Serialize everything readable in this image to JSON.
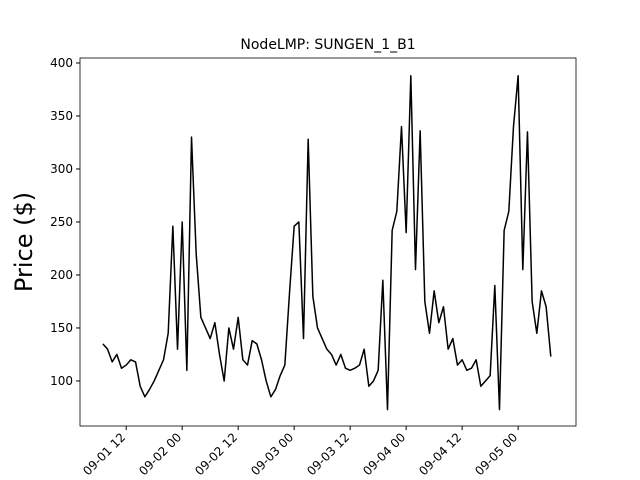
{
  "chart_data": {
    "type": "line",
    "title": "NodeLMP: SUNGEN_1_B1",
    "y_label": "Price ($)",
    "x": [
      7,
      8,
      9,
      10,
      11,
      12,
      13,
      14,
      15,
      16,
      17,
      18,
      19,
      20,
      21,
      22,
      23,
      24,
      25,
      26,
      27,
      28,
      29,
      30,
      31,
      32,
      33,
      34,
      35,
      36,
      37,
      38,
      39,
      40,
      41,
      42,
      43,
      44,
      45,
      46,
      47,
      48,
      49,
      50,
      51,
      52,
      53,
      54,
      55,
      56,
      57,
      58,
      59,
      60,
      61,
      62,
      63,
      64,
      65,
      66,
      67,
      68,
      69,
      70,
      71,
      72,
      73,
      74,
      75,
      76,
      77,
      78,
      79,
      80,
      81,
      82,
      83,
      84,
      85,
      86,
      87,
      88,
      89,
      90,
      91,
      92,
      93,
      94,
      95,
      96,
      97,
      98,
      99,
      100,
      101,
      102,
      103
    ],
    "values": [
      135,
      130,
      118,
      125,
      112,
      115,
      120,
      118,
      95,
      85,
      92,
      100,
      110,
      120,
      145,
      246,
      130,
      250,
      110,
      330,
      220,
      160,
      150,
      140,
      155,
      125,
      100,
      150,
      130,
      160,
      120,
      115,
      138,
      135,
      120,
      100,
      85,
      92,
      105,
      115,
      183,
      246,
      250,
      140,
      328,
      180,
      150,
      140,
      130,
      125,
      115,
      125,
      112,
      110,
      112,
      115,
      130,
      95,
      100,
      110,
      195,
      73,
      242,
      260,
      340,
      240,
      388,
      205,
      336,
      175,
      145,
      185,
      155,
      170,
      130,
      140,
      115,
      120,
      110,
      112,
      120,
      95,
      100,
      105,
      190,
      73,
      242,
      260,
      340,
      388,
      205,
      335,
      175,
      145,
      185,
      170,
      123
    ],
    "color": "#000000",
    "xlim": [
      2.1,
      108.4
    ],
    "xticks": [
      {
        "value": 12,
        "label": "09-01 12"
      },
      {
        "value": 24,
        "label": "09-02 00"
      },
      {
        "value": 36,
        "label": "09-02 12"
      },
      {
        "value": 48,
        "label": "09-03 00"
      },
      {
        "value": 60,
        "label": "09-03 12"
      },
      {
        "value": 72,
        "label": "09-04 00"
      },
      {
        "value": 84,
        "label": "09-04 12"
      },
      {
        "value": 96,
        "label": "09-05 00"
      }
    ],
    "ylim": [
      57.5,
      404.7
    ],
    "yticks": [
      100,
      150,
      200,
      250,
      300,
      350,
      400
    ]
  }
}
